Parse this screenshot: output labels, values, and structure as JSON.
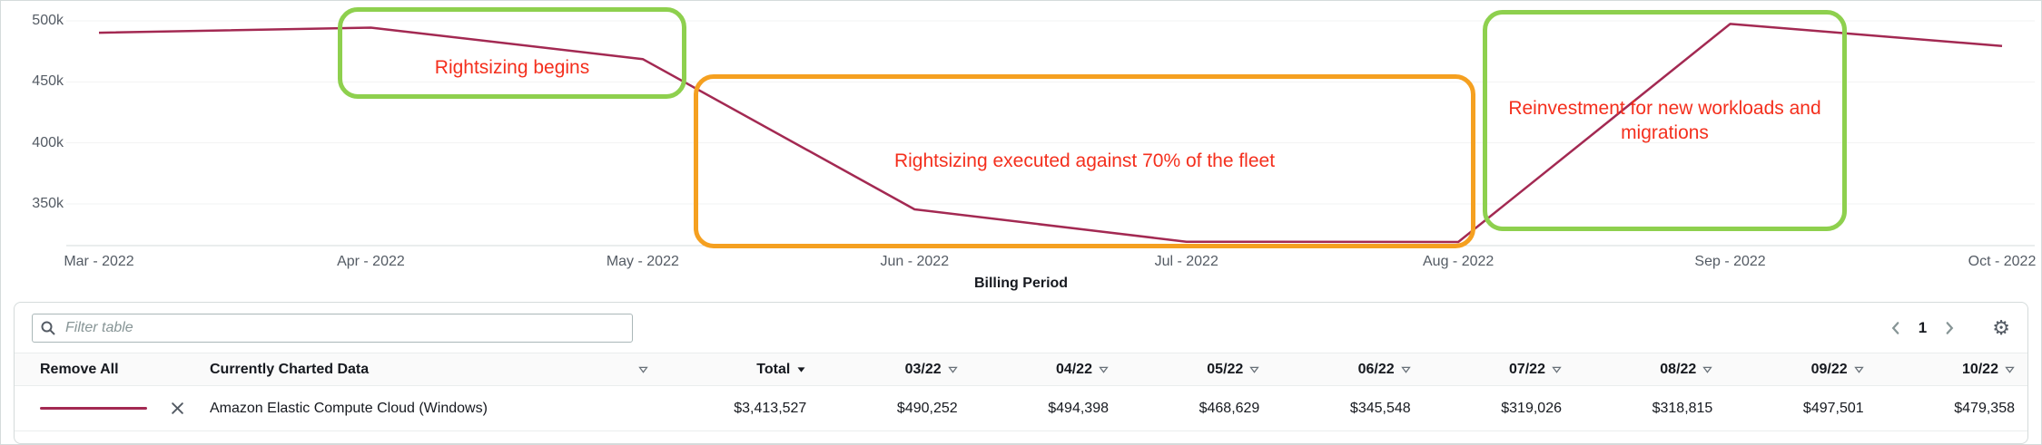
{
  "colors": {
    "line": "#a32952",
    "annotation_green": "#8ed04e",
    "annotation_orange": "#f5a020",
    "annotation_text": "#f42f1d"
  },
  "chart_data": {
    "type": "line",
    "title": "",
    "xlabel": "Billing Period",
    "ylabel": "",
    "x": [
      "Mar - 2022",
      "Apr - 2022",
      "May - 2022",
      "Jun - 2022",
      "Jul - 2022",
      "Aug - 2022",
      "Sep - 2022",
      "Oct - 2022"
    ],
    "series": [
      {
        "name": "Amazon Elastic Compute Cloud (Windows)",
        "color": "#a32952",
        "values": [
          490252,
          494398,
          468629,
          345548,
          319026,
          318815,
          497501,
          479358
        ]
      }
    ],
    "y_ticks": [
      {
        "value": 500000,
        "label": "500k"
      },
      {
        "value": 450000,
        "label": "450k"
      },
      {
        "value": 400000,
        "label": "400k"
      },
      {
        "value": 350000,
        "label": "350k"
      }
    ],
    "ylim": [
      315000,
      516000
    ],
    "grid": "faint-horizontal",
    "legend": "none",
    "annotations": [
      {
        "text": "Rightsizing begins",
        "box": "green"
      },
      {
        "text": "Rightsizing executed against 70% of the fleet",
        "box": "orange"
      },
      {
        "text": "Reinvestment for new workloads and migrations",
        "box": "green"
      }
    ]
  },
  "toolbar": {
    "filter_placeholder": "Filter table",
    "page_number": "1"
  },
  "table": {
    "columns": [
      "Remove All",
      "Currently Charted Data",
      "Total",
      "03/22",
      "04/22",
      "05/22",
      "06/22",
      "07/22",
      "08/22",
      "09/22",
      "10/22"
    ],
    "sorted_column": "Total",
    "rows": [
      {
        "name": "Amazon Elastic Compute Cloud (Windows)",
        "total": "$3,413,527",
        "values": [
          "$490,252",
          "$494,398",
          "$468,629",
          "$345,548",
          "$319,026",
          "$318,815",
          "$497,501",
          "$479,358"
        ]
      }
    ]
  }
}
